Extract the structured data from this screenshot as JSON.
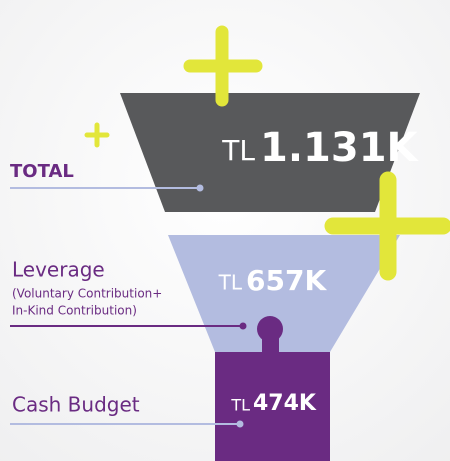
{
  "total": {
    "label": "TOTAL",
    "currency": "TL",
    "amount": "1.131K"
  },
  "leverage": {
    "label": "Leverage",
    "note_lines": [
      "(Voluntary Contribution+",
      "In-Kind Contribution)"
    ],
    "currency": "TL",
    "amount": "657K"
  },
  "cash_budget": {
    "label": "Cash Budget",
    "currency": "TL",
    "amount": "474K"
  }
}
